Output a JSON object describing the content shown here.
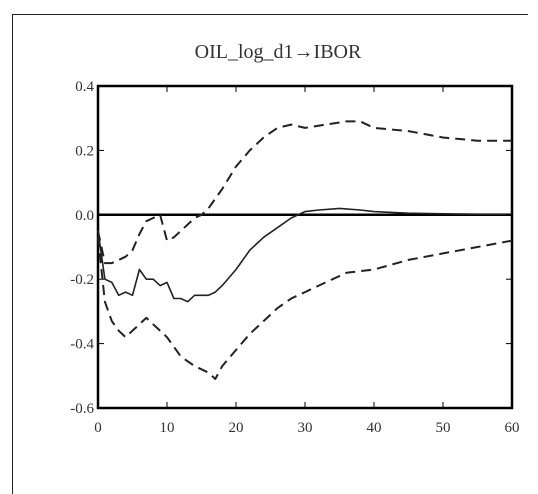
{
  "chart_data": {
    "type": "line",
    "title": "OIL_log_d1→IBOR",
    "xlabel": "",
    "ylabel": "",
    "xlim": [
      0,
      60
    ],
    "ylim": [
      -0.6,
      0.4
    ],
    "x_ticks": [
      "0",
      "10",
      "20",
      "30",
      "40",
      "50",
      "60"
    ],
    "y_ticks": [
      "0.4",
      "0.2",
      "0.0",
      "-0.2",
      "-0.4",
      "-0.6"
    ],
    "zero_line": 0.0,
    "grid": false,
    "legend": "none",
    "series": [
      {
        "role": "response",
        "style": "solid",
        "color": "#222222",
        "x": [
          0,
          1,
          2,
          3,
          4,
          5,
          6,
          7,
          8,
          9,
          10,
          11,
          12,
          13,
          14,
          15,
          16,
          17,
          18,
          20,
          22,
          24,
          26,
          28,
          30,
          32,
          35,
          38,
          40,
          45,
          50,
          55,
          60
        ],
        "y": [
          -0.05,
          -0.2,
          -0.21,
          -0.25,
          -0.24,
          -0.25,
          -0.17,
          -0.2,
          -0.2,
          -0.22,
          -0.21,
          -0.26,
          -0.26,
          -0.27,
          -0.25,
          -0.25,
          -0.25,
          -0.24,
          -0.22,
          -0.17,
          -0.11,
          -0.07,
          -0.04,
          -0.01,
          0.01,
          0.015,
          0.02,
          0.015,
          0.01,
          0.005,
          0.003,
          0.002,
          0.002
        ]
      },
      {
        "role": "upper-band",
        "style": "dashed",
        "color": "#222222",
        "x": [
          0,
          1,
          2,
          3,
          4,
          5,
          6,
          7,
          8,
          9,
          10,
          11,
          12,
          13,
          14,
          15,
          16,
          18,
          20,
          22,
          24,
          26,
          28,
          30,
          33,
          36,
          38,
          40,
          45,
          50,
          55,
          60
        ],
        "y": [
          -0.05,
          -0.15,
          -0.15,
          -0.14,
          -0.13,
          -0.11,
          -0.06,
          -0.02,
          -0.01,
          0.0,
          -0.08,
          -0.07,
          -0.05,
          -0.03,
          -0.01,
          0.0,
          0.02,
          0.08,
          0.15,
          0.2,
          0.24,
          0.27,
          0.28,
          0.27,
          0.28,
          0.29,
          0.29,
          0.27,
          0.26,
          0.24,
          0.23,
          0.23
        ]
      },
      {
        "role": "lower-band",
        "style": "dashed",
        "color": "#222222",
        "x": [
          0,
          1,
          2,
          3,
          4,
          5,
          6,
          7,
          8,
          10,
          12,
          14,
          16,
          17,
          18,
          20,
          22,
          24,
          26,
          28,
          30,
          33,
          36,
          40,
          45,
          50,
          55,
          60
        ],
        "y": [
          -0.07,
          -0.27,
          -0.33,
          -0.36,
          -0.38,
          -0.36,
          -0.34,
          -0.32,
          -0.34,
          -0.38,
          -0.44,
          -0.47,
          -0.49,
          -0.51,
          -0.47,
          -0.42,
          -0.37,
          -0.33,
          -0.29,
          -0.26,
          -0.24,
          -0.21,
          -0.18,
          -0.17,
          -0.14,
          -0.12,
          -0.1,
          -0.08
        ]
      }
    ]
  }
}
